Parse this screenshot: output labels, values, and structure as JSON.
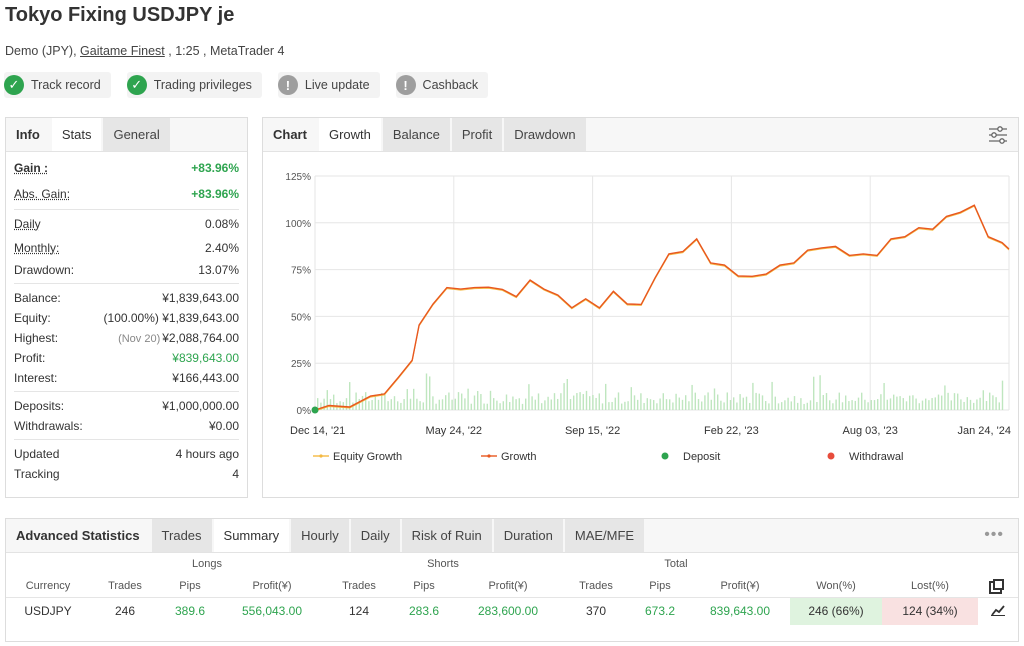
{
  "header": {
    "title": "Tokyo Fixing USDJPY je",
    "subtitle_pre": "Demo (JPY), ",
    "broker": "Gaitame Finest",
    "subtitle_post": " , 1:25 , MetaTrader 4"
  },
  "badges": [
    {
      "label": "Track record",
      "status": "ok"
    },
    {
      "label": "Trading privileges",
      "status": "ok"
    },
    {
      "label": "Live update",
      "status": "warn"
    },
    {
      "label": "Cashback",
      "status": "warn"
    }
  ],
  "left_tabs": [
    "Info",
    "Stats",
    "General"
  ],
  "stats": {
    "gain_k": "Gain :",
    "gain_v": "+83.96%",
    "absgain_k": "Abs. Gain:",
    "absgain_v": "+83.96%",
    "daily_k": "Daily",
    "daily_v": "0.08%",
    "monthly_k": "Monthly:",
    "monthly_v": "2.40%",
    "drawdown_k": "Drawdown:",
    "drawdown_v": "13.07%",
    "balance_k": "Balance:",
    "balance_v": "¥1,839,643.00",
    "equity_k": "Equity:",
    "equity_pre": "(100.00%)",
    "equity_v": "¥1,839,643.00",
    "highest_k": "Highest:",
    "highest_pre": "(Nov 20)",
    "highest_v": "¥2,088,764.00",
    "profit_k": "Profit:",
    "profit_v": "¥839,643.00",
    "interest_k": "Interest:",
    "interest_v": "¥166,443.00",
    "deposits_k": "Deposits:",
    "deposits_v": "¥1,000,000.00",
    "withdrawals_k": "Withdrawals:",
    "withdrawals_v": "¥0.00",
    "updated_k": "Updated",
    "updated_v": "4 hours ago",
    "tracking_k": "Tracking",
    "tracking_v": "4"
  },
  "chart_tabs": [
    "Chart",
    "Growth",
    "Balance",
    "Profit",
    "Drawdown"
  ],
  "chart_data": {
    "type": "line",
    "title": "",
    "y_ticks": [
      "125%",
      "100%",
      "75%",
      "50%",
      "25%",
      "0%"
    ],
    "x_ticks": [
      "Dec 14, '21",
      "May 24, '22",
      "Sep 15, '22",
      "Feb 22, '23",
      "Aug 03, '23",
      "Jan 24, '24"
    ],
    "ylim": [
      0,
      125
    ],
    "series": [
      {
        "name": "Equity Growth",
        "color": "#f4b942"
      },
      {
        "name": "Growth",
        "color": "#e8571f",
        "x": [
          0,
          0.02,
          0.05,
          0.08,
          0.1,
          0.12,
          0.14,
          0.15,
          0.17,
          0.19,
          0.21,
          0.23,
          0.25,
          0.27,
          0.29,
          0.31,
          0.33,
          0.35,
          0.37,
          0.39,
          0.41,
          0.43,
          0.45,
          0.47,
          0.49,
          0.51,
          0.53,
          0.55,
          0.57,
          0.59,
          0.61,
          0.63,
          0.65,
          0.67,
          0.69,
          0.71,
          0.73,
          0.75,
          0.77,
          0.79,
          0.81,
          0.83,
          0.85,
          0.87,
          0.89,
          0.91,
          0.93,
          0.95,
          0.97,
          0.99,
          1.0
        ],
        "y": [
          0,
          1,
          3,
          6,
          10,
          16,
          28,
          44,
          58,
          64,
          66,
          64,
          67,
          63,
          62,
          68,
          66,
          60,
          56,
          58,
          56,
          62,
          58,
          55,
          72,
          82,
          86,
          90,
          80,
          76,
          73,
          70,
          74,
          76,
          80,
          84,
          88,
          86,
          84,
          82,
          84,
          90,
          94,
          96,
          98,
          102,
          107,
          108,
          94,
          88,
          86
        ]
      },
      {
        "name": "Deposit",
        "color": "#2ea44f"
      },
      {
        "name": "Withdrawal",
        "color": "#e74c3c"
      }
    ]
  },
  "adv": {
    "title": "Advanced Statistics",
    "tabs": [
      "Trades",
      "Summary",
      "Hourly",
      "Daily",
      "Risk of Ruin",
      "Duration",
      "MAE/MFE"
    ],
    "more": "•••",
    "groups": {
      "longs": "Longs",
      "shorts": "Shorts",
      "total": "Total"
    },
    "headers": [
      "Currency",
      "Trades",
      "Pips",
      "Profit(¥)",
      "Trades",
      "Pips",
      "Profit(¥)",
      "Trades",
      "Pips",
      "Profit(¥)",
      "Won(%)",
      "Lost(%)"
    ],
    "row": [
      "USDJPY",
      "246",
      "389.6",
      "556,043.00",
      "124",
      "283.6",
      "283,600.00",
      "370",
      "673.2",
      "839,643.00",
      "246 (66%)",
      "124 (34%)"
    ]
  }
}
